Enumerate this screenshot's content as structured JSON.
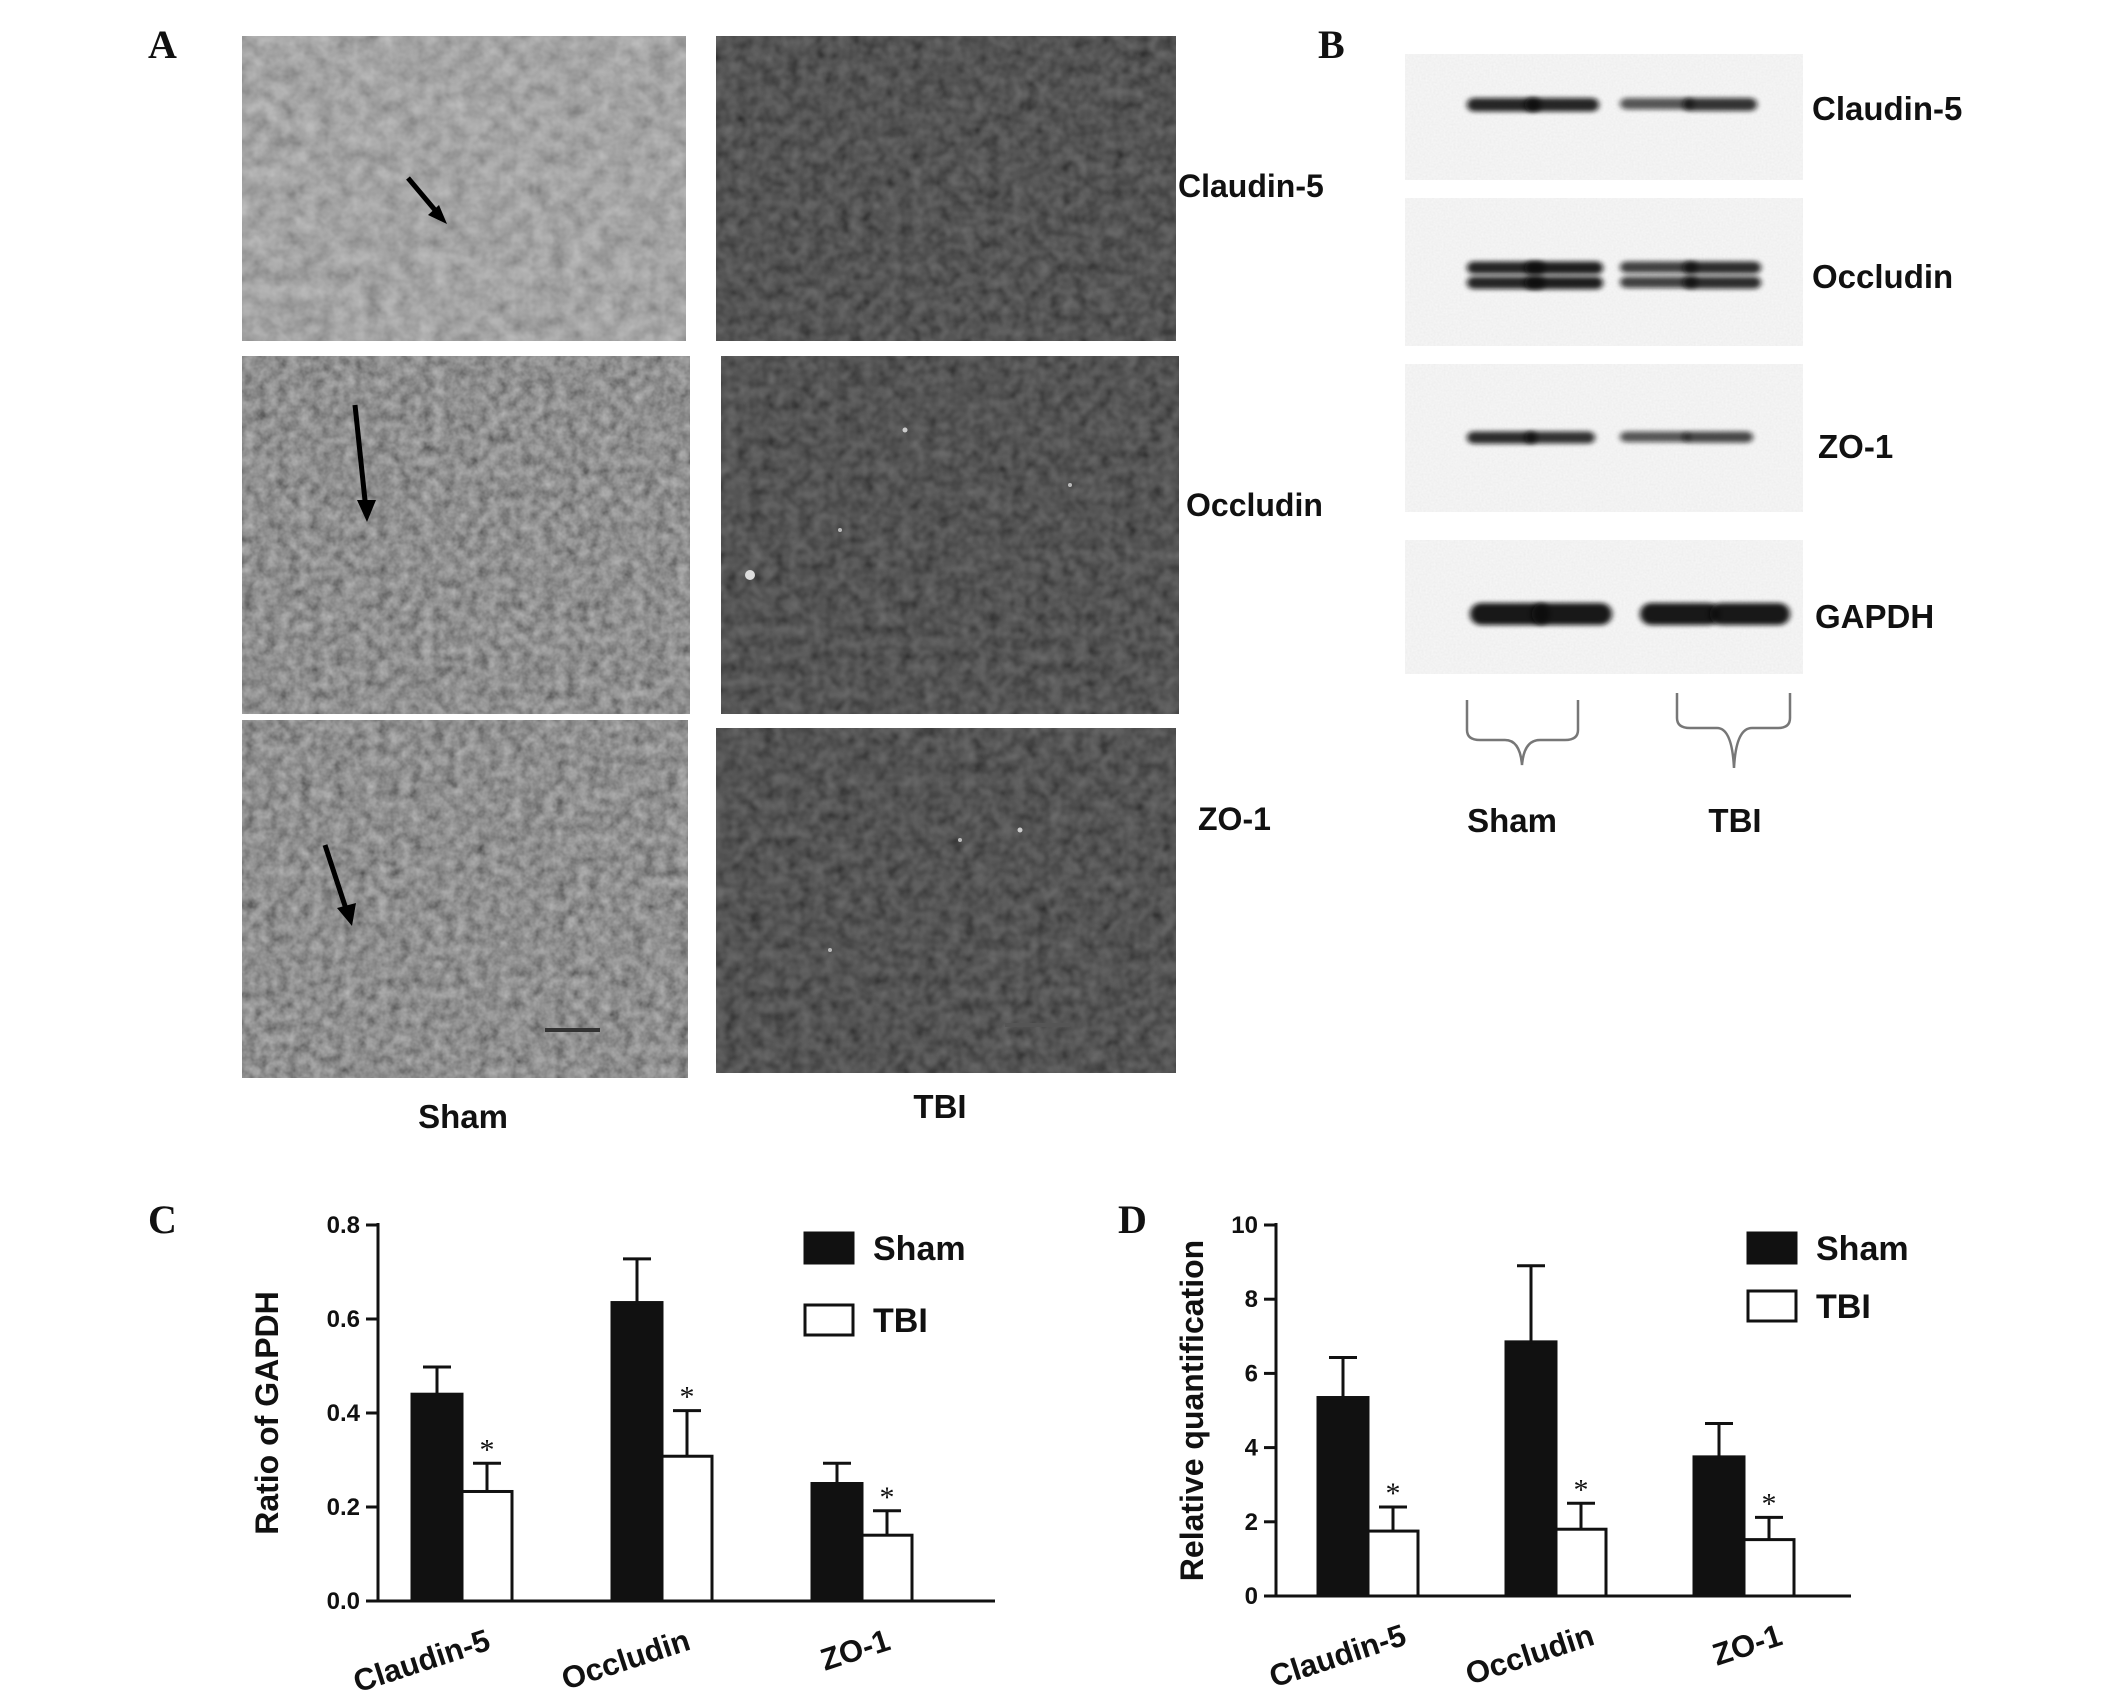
{
  "panels": {
    "A": {
      "letter": "A",
      "row_labels": [
        "Claudin-5",
        "Occludin",
        "ZO-1"
      ],
      "column_labels": [
        "Sham",
        "TBI"
      ]
    },
    "B": {
      "letter": "B",
      "band_labels": [
        "Claudin-5",
        "Occludin",
        "ZO-1",
        "GAPDH"
      ],
      "group_labels": [
        "Sham",
        "TBI"
      ],
      "band_intensity": {
        "Claudin-5": [
          0.9,
          0.9,
          0.55,
          0.8
        ],
        "Occludin": [
          0.9,
          0.95,
          0.7,
          0.85
        ],
        "ZO-1": [
          0.85,
          0.8,
          0.55,
          0.65
        ],
        "GAPDH": [
          1.0,
          1.0,
          1.0,
          1.0
        ]
      }
    }
  },
  "chart_data": [
    {
      "panel": "C",
      "type": "bar",
      "categories": [
        "Claudin-5",
        "Occludin",
        "ZO-1"
      ],
      "series": [
        {
          "name": "Sham",
          "values": [
            0.44,
            0.635,
            0.25
          ],
          "errors": [
            0.058,
            0.093,
            0.043
          ],
          "color": "#111111"
        },
        {
          "name": "TBI",
          "values": [
            0.233,
            0.308,
            0.14
          ],
          "errors": [
            0.06,
            0.097,
            0.052
          ],
          "color": "#ffffff"
        }
      ],
      "significance": [
        "*",
        "*",
        "*"
      ],
      "ylabel": "Ratio of GAPDH",
      "ylim": [
        0,
        0.8
      ],
      "yticks": [
        "0.0",
        "0.2",
        "0.4",
        "0.6",
        "0.8"
      ],
      "legend": "top-right"
    },
    {
      "panel": "D",
      "type": "bar",
      "categories": [
        "Claudin-5",
        "Occludin",
        "ZO-1"
      ],
      "series": [
        {
          "name": "Sham",
          "values": [
            5.35,
            6.85,
            3.75
          ],
          "errors": [
            1.08,
            2.05,
            0.9
          ],
          "color": "#111111"
        },
        {
          "name": "TBI",
          "values": [
            1.75,
            1.8,
            1.52
          ],
          "errors": [
            0.65,
            0.7,
            0.6
          ],
          "color": "#ffffff"
        }
      ],
      "significance": [
        "*",
        "*",
        "*"
      ],
      "ylabel": "Relative quantification",
      "ylim": [
        0,
        10
      ],
      "yticks": [
        "0",
        "2",
        "4",
        "6",
        "8",
        "10"
      ],
      "legend": "top-right"
    }
  ]
}
